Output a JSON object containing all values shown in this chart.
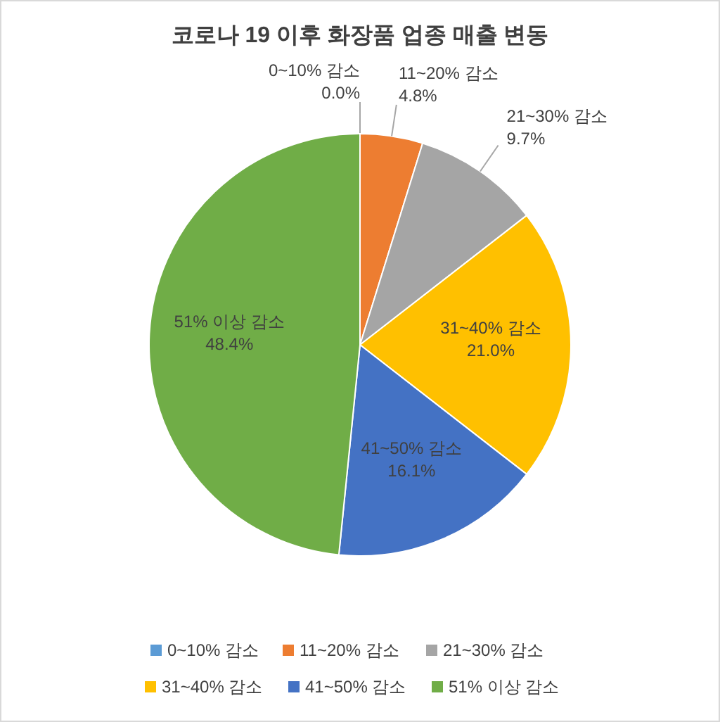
{
  "chart_data": {
    "type": "pie",
    "title": "코로나 19 이후 화장품 업종 매출 변동",
    "categories": [
      "0~10% 감소",
      "11~20% 감소",
      "21~30% 감소",
      "31~40% 감소",
      "41~50% 감소",
      "51% 이상 감소"
    ],
    "values": [
      0.0,
      4.8,
      9.7,
      21.0,
      16.1,
      48.4
    ],
    "value_labels": [
      "0.0%",
      "4.8%",
      "9.7%",
      "21.0%",
      "16.1%",
      "48.4%"
    ],
    "colors": [
      "#5b9bd5",
      "#ed7d31",
      "#a5a5a5",
      "#ffc000",
      "#4472c4",
      "#70ad47"
    ],
    "legend": "bottom"
  }
}
